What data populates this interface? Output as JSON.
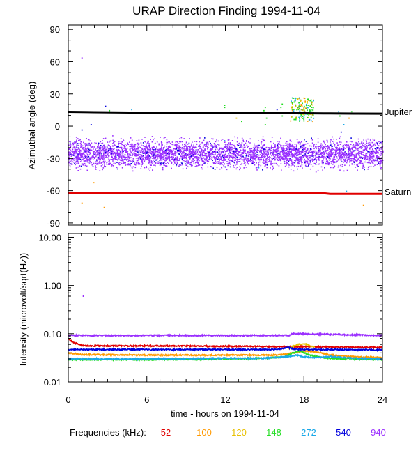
{
  "chart_data": [
    {
      "type": "scatter",
      "title": "URAP Direction Finding  1994-11-04",
      "ylabel": "Azimuthal angle (deg)",
      "xlabel": "",
      "xlim": [
        0,
        24
      ],
      "ylim": [
        -92,
        94
      ],
      "yticks": [
        90,
        60,
        30,
        0,
        -30,
        -60,
        -90
      ],
      "ytick_labels": [
        "90",
        "60",
        "30",
        "0",
        "-30",
        "-60",
        "-90"
      ],
      "series": [
        {
          "name": "Jupiter",
          "color": "#000000",
          "x": [
            0,
            2,
            4,
            6,
            8,
            10,
            12,
            14,
            16,
            18,
            19.5,
            20,
            22,
            24
          ],
          "y": [
            13.3,
            13.0,
            12.7,
            12.5,
            12.4,
            12.3,
            12.2,
            12.1,
            12.0,
            12.0,
            11.9,
            11.8,
            11.7,
            11.6
          ]
        },
        {
          "name": "Saturn",
          "color": "#e00000",
          "x": [
            0,
            6,
            12,
            19.5,
            20,
            24
          ],
          "y": [
            -62.4,
            -62.4,
            -62.4,
            -62.4,
            -63.0,
            -63.0
          ]
        }
      ],
      "band": {
        "name": "940 kHz",
        "color": "#9b30ff",
        "x_range": [
          0,
          24
        ],
        "y_center": -26,
        "y_spread": 6
      }
    },
    {
      "type": "line",
      "ylabel": "Intensity (microvolt/sqrt(Hz))",
      "xlabel": "time - hours on 1994-11-04",
      "xlim": [
        0,
        24
      ],
      "ylim_log": [
        0.01,
        12
      ],
      "yscale": "log",
      "yticks": [
        10,
        1,
        0.1,
        0.01
      ],
      "ytick_labels": [
        "10.00",
        "1.00",
        "0.10",
        "0.01"
      ],
      "xticks": [
        0,
        6,
        12,
        18,
        24
      ],
      "xtick_labels": [
        "0",
        "6",
        "12",
        "18",
        "24"
      ],
      "series": [
        {
          "name": "52",
          "color": "#e00000",
          "x": [
            0,
            0.5,
            1,
            1.5,
            2,
            6,
            12,
            16,
            18,
            20,
            24
          ],
          "y": [
            0.077,
            0.064,
            0.058,
            0.056,
            0.056,
            0.056,
            0.055,
            0.054,
            0.054,
            0.053,
            0.052
          ]
        },
        {
          "name": "100",
          "color": "#ff9900",
          "x": [
            0,
            1,
            6,
            12,
            16,
            17.5,
            18,
            19,
            20,
            22,
            24
          ],
          "y": [
            0.04,
            0.037,
            0.036,
            0.036,
            0.036,
            0.041,
            0.044,
            0.042,
            0.036,
            0.033,
            0.032
          ]
        },
        {
          "name": "120",
          "color": "#e8c000",
          "x": [
            16.8,
            17.2,
            17.6,
            18,
            18.4,
            18.8
          ],
          "y": [
            0.05,
            0.055,
            0.06,
            0.062,
            0.058,
            0.052
          ]
        },
        {
          "name": "148",
          "color": "#22dd22",
          "x": [
            0,
            6,
            12,
            15,
            16.5,
            17.2,
            17.6,
            18,
            18.5,
            19,
            20,
            22,
            24
          ],
          "y": [
            0.029,
            0.029,
            0.03,
            0.031,
            0.033,
            0.04,
            0.044,
            0.04,
            0.036,
            0.033,
            0.031,
            0.03,
            0.029
          ]
        },
        {
          "name": "272",
          "color": "#1aa8e8",
          "x": [
            0,
            6,
            12,
            15,
            16.5,
            17.5,
            18,
            19,
            20,
            21,
            22,
            24
          ],
          "y": [
            0.03,
            0.03,
            0.031,
            0.031,
            0.033,
            0.036,
            0.033,
            0.032,
            0.034,
            0.032,
            0.031,
            0.03
          ]
        },
        {
          "name": "540",
          "color": "#0000dd",
          "x": [
            0,
            6,
            12,
            16,
            16.8,
            17.2,
            18,
            20,
            24
          ],
          "y": [
            0.047,
            0.047,
            0.047,
            0.047,
            0.052,
            0.048,
            0.047,
            0.047,
            0.046
          ]
        },
        {
          "name": "940",
          "color": "#9b30ff",
          "x": [
            0,
            6,
            12,
            16.9,
            17.1,
            24
          ],
          "y": [
            0.092,
            0.092,
            0.092,
            0.092,
            0.1,
            0.092
          ]
        }
      ],
      "annotations": [
        {
          "x": 1.1,
          "y": 0.62,
          "color": "#9b30ff"
        }
      ]
    }
  ],
  "legend": {
    "label": "Frequencies (kHz):",
    "items": [
      {
        "text": "52",
        "color": "#e00000"
      },
      {
        "text": "100",
        "color": "#ff9900"
      },
      {
        "text": "120",
        "color": "#e8c000"
      },
      {
        "text": "148",
        "color": "#22dd22"
      },
      {
        "text": "272",
        "color": "#1aa8e8"
      },
      {
        "text": "540",
        "color": "#0000dd"
      },
      {
        "text": "940",
        "color": "#9b30ff"
      }
    ]
  }
}
